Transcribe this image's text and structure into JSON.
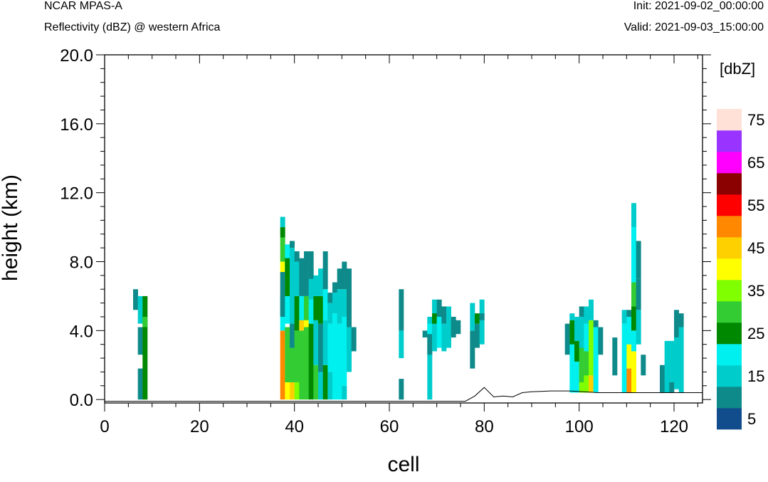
{
  "header": {
    "model": "NCAR MPAS-A",
    "field": "Reflectivity (dBZ) @ western Africa",
    "init": "Init: 2021-09-02_00:00:00",
    "valid": "Valid: 2021-09-03_15:00:00"
  },
  "chart_data": {
    "type": "heatmap",
    "xlabel": "cell",
    "ylabel": "height (km)",
    "xlim": [
      0,
      126
    ],
    "ylim": [
      -0.2,
      20.0
    ],
    "x_ticks": [
      0,
      20,
      40,
      60,
      80,
      100,
      120
    ],
    "x_tick_labels": [
      "0",
      "20",
      "40",
      "60",
      "80",
      "100",
      "120"
    ],
    "y_ticks": [
      0,
      4,
      8,
      12,
      16,
      20
    ],
    "y_tick_labels": [
      "0.0",
      "4.0",
      "8.0",
      "12.0",
      "16.0",
      "20.0"
    ],
    "colorbar": {
      "title": "[dbZ]",
      "levels": [
        5,
        10,
        15,
        20,
        25,
        30,
        35,
        40,
        45,
        50,
        55,
        60,
        65,
        70,
        75
      ],
      "tick_labels": [
        "5",
        "15",
        "25",
        "35",
        "45",
        "55",
        "65",
        "75"
      ],
      "colors": [
        "#114d8c",
        "#0f8a8a",
        "#00cccc",
        "#00efef",
        "#008800",
        "#33cc33",
        "#80ff00",
        "#ffff00",
        "#ffd000",
        "#ff8800",
        "#ff0000",
        "#8b0000",
        "#ff00ff",
        "#9933ff",
        "#ffe1d8"
      ]
    },
    "cell_dz_km": 0.4,
    "columns": [
      {
        "x": 6,
        "bins": [
          [
            5.2,
            6.4,
            1
          ]
        ]
      },
      {
        "x": 7,
        "bins": [
          [
            0.0,
            1.8,
            1
          ],
          [
            2.6,
            4.2,
            1
          ],
          [
            4.4,
            6.0,
            2
          ]
        ]
      },
      {
        "x": 8,
        "bins": [
          [
            0.0,
            6.0,
            4
          ],
          [
            4.2,
            4.8,
            5
          ]
        ]
      },
      {
        "x": 37,
        "bins": [
          [
            0.0,
            4.0,
            9
          ],
          [
            4.0,
            6.0,
            3
          ],
          [
            6.0,
            8.0,
            7
          ],
          [
            8.0,
            9.4,
            5
          ],
          [
            9.4,
            10.0,
            4
          ],
          [
            10.0,
            10.6,
            2
          ],
          [
            4.8,
            7.4,
            1
          ]
        ]
      },
      {
        "x": 38,
        "bins": [
          [
            0.0,
            3.6,
            7
          ],
          [
            1.0,
            4.2,
            5
          ],
          [
            4.4,
            9.0,
            3
          ],
          [
            6.0,
            8.2,
            4
          ]
        ]
      },
      {
        "x": 39,
        "bins": [
          [
            0.0,
            1.0,
            8
          ],
          [
            1.0,
            4.0,
            5
          ],
          [
            3.0,
            4.4,
            1
          ],
          [
            4.4,
            8.8,
            2
          ],
          [
            8.8,
            9.2,
            1
          ]
        ]
      },
      {
        "x": 40,
        "bins": [
          [
            0.0,
            1.0,
            6
          ],
          [
            1.0,
            4.0,
            5
          ],
          [
            4.0,
            6.0,
            4
          ],
          [
            6.0,
            8.6,
            2
          ],
          [
            8.0,
            8.6,
            1
          ]
        ]
      },
      {
        "x": 41,
        "bins": [
          [
            0.0,
            4.0,
            5
          ],
          [
            4.0,
            6.0,
            3
          ],
          [
            6.0,
            8.2,
            1
          ],
          [
            4.0,
            4.6,
            8
          ]
        ]
      },
      {
        "x": 42,
        "bins": [
          [
            0.0,
            6.0,
            5
          ],
          [
            4.2,
            4.6,
            7
          ],
          [
            6.0,
            8.6,
            1
          ]
        ]
      },
      {
        "x": 43,
        "bins": [
          [
            0.0,
            4.4,
            4
          ],
          [
            4.4,
            5.8,
            3
          ],
          [
            5.8,
            7.6,
            2
          ],
          [
            7.0,
            8.6,
            1
          ]
        ]
      },
      {
        "x": 44,
        "bins": [
          [
            0.0,
            2.0,
            5
          ],
          [
            2.0,
            4.6,
            2
          ],
          [
            4.6,
            6.0,
            4
          ],
          [
            6.0,
            7.2,
            2
          ]
        ]
      },
      {
        "x": 45,
        "bins": [
          [
            0.0,
            1.6,
            2
          ],
          [
            1.6,
            4.4,
            1
          ],
          [
            4.4,
            6.0,
            4
          ],
          [
            6.0,
            7.6,
            2
          ]
        ]
      },
      {
        "x": 46,
        "bins": [
          [
            0.0,
            2.0,
            4
          ],
          [
            2.0,
            4.6,
            2
          ],
          [
            4.6,
            6.4,
            3
          ],
          [
            6.4,
            8.6,
            1
          ]
        ]
      },
      {
        "x": 47,
        "bins": [
          [
            0.0,
            1.6,
            2
          ],
          [
            1.6,
            4.4,
            3
          ],
          [
            4.4,
            5.6,
            2
          ],
          [
            5.6,
            6.2,
            1
          ]
        ]
      },
      {
        "x": 48,
        "bins": [
          [
            0.0,
            5.0,
            3
          ],
          [
            5.0,
            6.2,
            2
          ],
          [
            6.2,
            6.8,
            1
          ]
        ]
      },
      {
        "x": 49,
        "bins": [
          [
            0.0,
            4.4,
            3
          ],
          [
            4.4,
            6.4,
            2
          ],
          [
            6.4,
            7.6,
            1
          ]
        ]
      },
      {
        "x": 50,
        "bins": [
          [
            0.0,
            0.8,
            2
          ],
          [
            0.8,
            4.8,
            3
          ],
          [
            4.8,
            6.4,
            2
          ],
          [
            6.4,
            8.0,
            1
          ]
        ]
      },
      {
        "x": 51,
        "bins": [
          [
            1.6,
            4.2,
            2
          ],
          [
            4.2,
            7.6,
            1
          ]
        ]
      },
      {
        "x": 52,
        "bins": [
          [
            2.8,
            4.2,
            1
          ]
        ]
      },
      {
        "x": 62,
        "bins": [
          [
            0.0,
            1.2,
            1
          ],
          [
            2.4,
            4.0,
            2
          ],
          [
            4.0,
            6.4,
            1
          ]
        ]
      },
      {
        "x": 67,
        "bins": [
          [
            3.6,
            4.0,
            1
          ]
        ]
      },
      {
        "x": 68,
        "bins": [
          [
            0.0,
            4.8,
            2
          ],
          [
            2.6,
            3.8,
            1
          ],
          [
            3.8,
            4.4,
            3
          ]
        ]
      },
      {
        "x": 69,
        "bins": [
          [
            2.8,
            5.8,
            2
          ],
          [
            4.4,
            5.0,
            4
          ]
        ]
      },
      {
        "x": 70,
        "bins": [
          [
            3.0,
            4.8,
            3
          ],
          [
            4.8,
            5.8,
            1
          ]
        ]
      },
      {
        "x": 71,
        "bins": [
          [
            2.8,
            4.4,
            2
          ],
          [
            4.4,
            5.4,
            1
          ]
        ]
      },
      {
        "x": 72,
        "bins": [
          [
            3.0,
            5.4,
            2
          ]
        ]
      },
      {
        "x": 73,
        "bins": [
          [
            3.6,
            4.8,
            1
          ]
        ]
      },
      {
        "x": 74,
        "bins": [
          [
            3.8,
            4.6,
            1
          ]
        ]
      },
      {
        "x": 77,
        "bins": [
          [
            1.8,
            4.0,
            1
          ],
          [
            4.0,
            5.6,
            2
          ]
        ]
      },
      {
        "x": 78,
        "bins": [
          [
            3.0,
            4.4,
            1
          ],
          [
            4.4,
            5.0,
            4
          ]
        ]
      },
      {
        "x": 79,
        "bins": [
          [
            3.2,
            5.8,
            2
          ],
          [
            4.6,
            5.0,
            1
          ]
        ]
      },
      {
        "x": 97,
        "bins": [
          [
            2.6,
            4.4,
            1
          ]
        ]
      },
      {
        "x": 98,
        "bins": [
          [
            0.4,
            4.8,
            3
          ],
          [
            3.2,
            4.6,
            4
          ],
          [
            4.6,
            5.0,
            2
          ]
        ]
      },
      {
        "x": 99,
        "bins": [
          [
            0.4,
            4.6,
            3
          ],
          [
            2.2,
            3.4,
            4
          ],
          [
            3.4,
            4.8,
            2
          ]
        ]
      },
      {
        "x": 100,
        "bins": [
          [
            0.4,
            2.0,
            6
          ],
          [
            1.0,
            3.0,
            5
          ],
          [
            3.0,
            4.8,
            2
          ],
          [
            4.8,
            5.4,
            1
          ]
        ]
      },
      {
        "x": 101,
        "bins": [
          [
            0.4,
            3.0,
            6
          ],
          [
            1.4,
            2.8,
            5
          ],
          [
            2.8,
            4.4,
            3
          ],
          [
            4.4,
            5.4,
            2
          ]
        ]
      },
      {
        "x": 102,
        "bins": [
          [
            0.4,
            1.4,
            8
          ],
          [
            1.4,
            4.6,
            6
          ],
          [
            4.6,
            5.8,
            2
          ]
        ]
      },
      {
        "x": 103,
        "bins": [
          [
            0.4,
            4.2,
            3
          ],
          [
            4.2,
            4.6,
            1
          ]
        ]
      },
      {
        "x": 104,
        "bins": [
          [
            2.6,
            4.2,
            1
          ]
        ]
      },
      {
        "x": 107,
        "bins": [
          [
            1.4,
            3.6,
            1
          ]
        ]
      },
      {
        "x": 109,
        "bins": [
          [
            0.4,
            4.4,
            3
          ],
          [
            4.4,
            5.2,
            2
          ]
        ]
      },
      {
        "x": 110,
        "bins": [
          [
            0.4,
            1.8,
            9
          ],
          [
            1.8,
            3.2,
            7
          ],
          [
            3.2,
            4.8,
            3
          ],
          [
            4.8,
            5.2,
            1
          ]
        ]
      },
      {
        "x": 111,
        "bins": [
          [
            0.4,
            2.8,
            7
          ],
          [
            2.8,
            4.0,
            3
          ],
          [
            4.0,
            5.4,
            4
          ],
          [
            5.4,
            6.8,
            5
          ],
          [
            6.8,
            10.0,
            3
          ],
          [
            10.0,
            11.4,
            2
          ]
        ]
      },
      {
        "x": 112,
        "bins": [
          [
            3.2,
            5.2,
            2
          ],
          [
            5.2,
            7.0,
            1
          ],
          [
            7.0,
            9.2,
            1
          ]
        ]
      },
      {
        "x": 113,
        "bins": [
          [
            1.4,
            2.6,
            1
          ]
        ]
      },
      {
        "x": 117,
        "bins": [
          [
            0.4,
            2.0,
            1
          ]
        ]
      },
      {
        "x": 118,
        "bins": [
          [
            0.4,
            3.4,
            2
          ]
        ]
      },
      {
        "x": 119,
        "bins": [
          [
            0.4,
            1.4,
            1
          ],
          [
            1.0,
            3.4,
            2
          ]
        ]
      },
      {
        "x": 120,
        "bins": [
          [
            0.6,
            3.6,
            2
          ],
          [
            3.6,
            5.2,
            1
          ]
        ]
      },
      {
        "x": 121,
        "bins": [
          [
            0.4,
            4.2,
            2
          ],
          [
            4.2,
            5.0,
            1
          ]
        ]
      }
    ],
    "terrain": {
      "x": [
        0,
        76,
        78,
        80,
        82,
        84,
        86,
        88,
        90,
        94,
        98,
        104,
        110,
        116,
        126
      ],
      "height": [
        -0.1,
        -0.1,
        0.2,
        0.7,
        0.15,
        0.2,
        0.15,
        0.4,
        0.45,
        0.5,
        0.5,
        0.4,
        0.4,
        0.4,
        0.4
      ]
    }
  }
}
